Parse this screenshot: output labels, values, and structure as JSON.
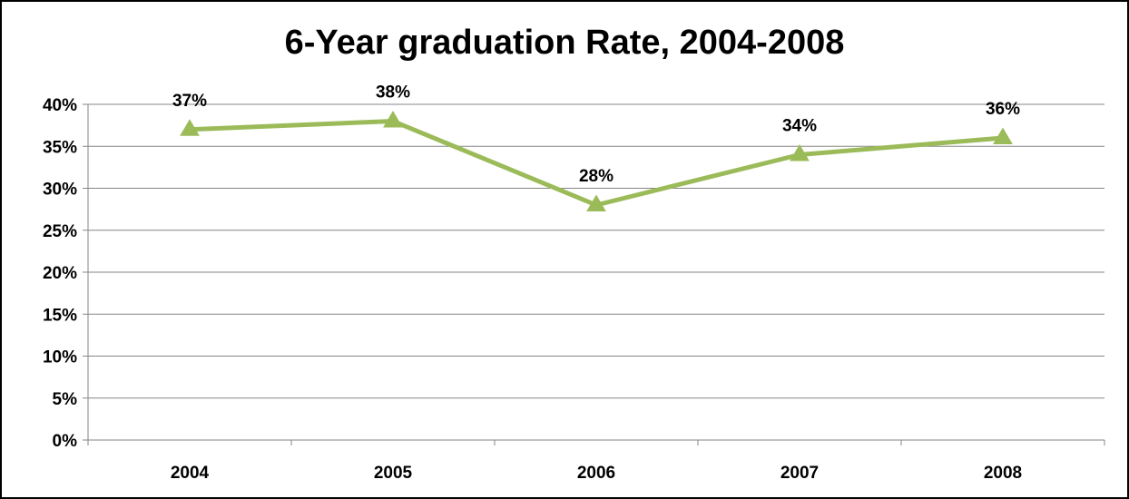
{
  "chart_data": {
    "type": "line",
    "title": "6-Year graduation Rate, 2004-2008",
    "xlabel": "",
    "ylabel": "",
    "categories": [
      "2004",
      "2005",
      "2006",
      "2007",
      "2008"
    ],
    "series": [
      {
        "values": [
          37,
          38,
          28,
          34,
          36
        ],
        "data_labels": [
          "37%",
          "38%",
          "28%",
          "34%",
          "36%"
        ],
        "color": "#9bbb59",
        "marker": "triangle"
      }
    ],
    "ylim": [
      0,
      40
    ],
    "y_ticks": [
      0,
      5,
      10,
      15,
      20,
      25,
      30,
      35,
      40
    ],
    "y_tick_labels": [
      "0%",
      "5%",
      "10%",
      "15%",
      "20%",
      "25%",
      "30%",
      "35%",
      "40%"
    ],
    "grid": true,
    "legend": "none"
  }
}
